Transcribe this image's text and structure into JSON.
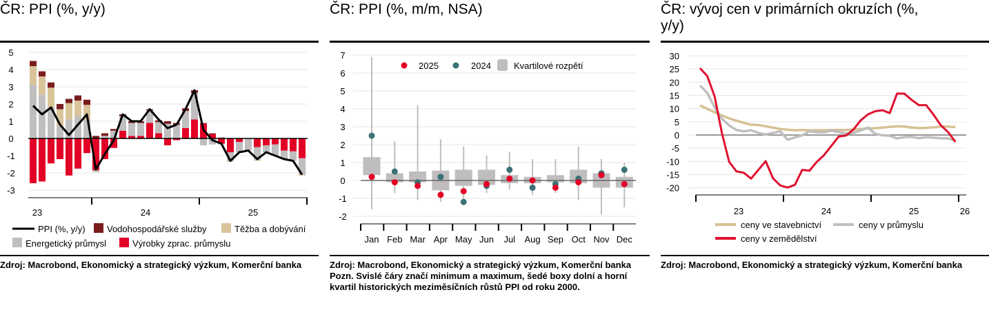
{
  "colors": {
    "manufacturing": "#e30026",
    "energy": "#c0bebe",
    "mining": "#d9c49a",
    "water": "#7b1c1f",
    "ppi_line": "#000000",
    "dot2025": "#e30026",
    "dot2024": "#3a7276",
    "box": "#bfbdbd",
    "agri": "#e0102e",
    "constr": "#d6c194",
    "industry": "#c0bebe"
  },
  "chart_data": [
    {
      "type": "bar",
      "stacked": true,
      "title": "ČR: PPI (%, y/y)",
      "source": "Zdroj: Macrobond, Ekonomický a strategický výzkum, Komerční banka",
      "ylim": [
        -3,
        5
      ],
      "yticks": [
        "5",
        "4",
        "3",
        "2",
        "1",
        "0",
        "-1",
        "-2",
        "-3"
      ],
      "xticks": [
        "23",
        "24",
        "25"
      ],
      "grid": true,
      "legend_position": "bottom",
      "categories": [
        "2023-06",
        "2023-07",
        "2023-08",
        "2023-09",
        "2023-10",
        "2023-11",
        "2023-12",
        "2024-01",
        "2024-02",
        "2024-03",
        "2024-04",
        "2024-05",
        "2024-06",
        "2024-07",
        "2024-08",
        "2024-09",
        "2024-10",
        "2024-11",
        "2024-12",
        "2025-01",
        "2025-02",
        "2025-03",
        "2025-04",
        "2025-05",
        "2025-06",
        "2025-07",
        "2025-08",
        "2025-09",
        "2025-10",
        "2025-11",
        "2025-12"
      ],
      "series": [
        {
          "name": "Výrobky zprac. průmyslu",
          "kind": "bar",
          "values": [
            -2.6,
            -2.5,
            -1.45,
            -1.2,
            -2.15,
            -1.75,
            -0.85,
            -1.85,
            -1.2,
            -0.55,
            0.45,
            0.15,
            0.15,
            0.9,
            0.3,
            -0.4,
            -0.1,
            0.6,
            1.1,
            0.85,
            0.25,
            -0.3,
            -0.8,
            -0.2,
            0,
            -0.5,
            -0.4,
            -0.35,
            -0.7,
            -0.75,
            -1.15
          ]
        },
        {
          "name": "Energetický průmysl",
          "kind": "bar",
          "values": [
            3.1,
            2.55,
            1.8,
            0.7,
            1.1,
            1.3,
            1.1,
            -0.1,
            0.15,
            0.45,
            0.85,
            0.75,
            0.75,
            0.75,
            0.65,
            0.85,
            0.8,
            1.0,
            1.55,
            -0.4,
            -0.35,
            -0.05,
            -0.5,
            -0.6,
            -0.7,
            -0.75,
            -0.4,
            -0.65,
            -0.5,
            -0.55,
            -0.95
          ]
        },
        {
          "name": "Těžba a dobývání",
          "kind": "bar",
          "values": [
            1.1,
            1.05,
            1.15,
            1.0,
            0.95,
            0.9,
            0.85,
            0,
            0,
            0,
            0,
            0,
            0,
            0,
            0,
            0,
            0,
            0,
            0,
            0,
            0,
            0,
            -0.05,
            0,
            0,
            -0.05,
            0,
            0,
            0,
            0,
            -0.05
          ]
        },
        {
          "name": "Vodohospodářské služby",
          "kind": "bar",
          "values": [
            0.3,
            0.3,
            0.3,
            0.3,
            0.25,
            0.3,
            0.3,
            0.15,
            0.15,
            0.1,
            0.1,
            0.1,
            0.1,
            0.05,
            0.1,
            0.15,
            0.1,
            0.15,
            0.15,
            0.05,
            0.05,
            0.05,
            0,
            0,
            0,
            0,
            0,
            0,
            0,
            0,
            0
          ]
        },
        {
          "name": "PPI (%, y/y)",
          "kind": "line",
          "values": [
            1.9,
            1.4,
            1.8,
            0.8,
            0.2,
            0.8,
            1.4,
            -1.8,
            -0.9,
            -0.1,
            1.4,
            1.0,
            1.0,
            1.7,
            1.1,
            0.6,
            0.8,
            1.7,
            2.8,
            0.5,
            -0.1,
            -0.3,
            -1.3,
            -0.8,
            -0.7,
            -1.2,
            -0.8,
            -1.0,
            -1.2,
            -1.3,
            -2.1
          ]
        }
      ]
    },
    {
      "type": "box",
      "title": "ČR: PPI (%, m/m, NSA)",
      "source": "Zdroj: Macrobond, Ekonomický a strategický výzkum, Komerční banka",
      "note": "Pozn. Svislé čáry značí minimum a maximum, šedé boxy dolní a horní kvartil historických meziměsíčních růstů PPI od roku 2000.",
      "ylim": [
        -2,
        7
      ],
      "yticks": [
        "7",
        "6",
        "5",
        "4",
        "3",
        "2",
        "1",
        "0",
        "-1",
        "-2"
      ],
      "grid": true,
      "legend_position": "top",
      "legend": {
        "s2025": "2025",
        "s2024": "2024",
        "box": "Kvartilové rozpětí"
      },
      "categories": [
        "Jan",
        "Feb",
        "Mar",
        "Apr",
        "May",
        "Jun",
        "Jul",
        "Aug",
        "Sep",
        "Oct",
        "Nov",
        "Dec"
      ],
      "min": [
        -1.6,
        -0.7,
        -1.1,
        -1.2,
        -1.2,
        -0.7,
        -0.5,
        -0.8,
        -0.7,
        -1.1,
        -1.9,
        -1.5
      ],
      "max": [
        6.9,
        2.2,
        4.2,
        2.3,
        1.9,
        1.4,
        1.6,
        1.2,
        1.2,
        1.9,
        1.2,
        1.0
      ],
      "q1": [
        0.3,
        -0.1,
        -0.1,
        -0.55,
        -0.3,
        -0.25,
        -0.15,
        -0.15,
        -0.1,
        -0.15,
        -0.4,
        -0.4
      ],
      "q3": [
        1.3,
        0.4,
        0.5,
        0.55,
        0.6,
        0.6,
        0.3,
        0.2,
        0.3,
        0.6,
        0.4,
        0.2
      ],
      "series": [
        {
          "name": "2025",
          "values": [
            0.2,
            -0.1,
            -0.3,
            -0.8,
            -0.6,
            -0.2,
            0.1,
            0.0,
            -0.4,
            -0.1,
            0.3,
            -0.2
          ]
        },
        {
          "name": "2024",
          "values": [
            2.5,
            0.5,
            -0.1,
            0.2,
            -1.2,
            -0.3,
            0.6,
            -0.4,
            -0.2,
            0.1,
            0.4,
            0.6
          ]
        }
      ]
    },
    {
      "type": "line",
      "title_lines": [
        "ČR: vývoj cen v primárních okruzích (%,",
        "y/y)"
      ],
      "source": "Zdroj: Macrobond, Ekonomický a strategický výzkum, Komerční banka",
      "ylim": [
        -20,
        30
      ],
      "yticks": [
        "30",
        "25",
        "20",
        "15",
        "10",
        "5",
        "0",
        "-5",
        "-10",
        "-15",
        "-20"
      ],
      "xticks": [
        "23",
        "24",
        "25",
        "26"
      ],
      "grid": true,
      "legend_position": "bottom",
      "x_start": "2023-01",
      "x_end": "2025-12",
      "series": [
        {
          "name": "ceny ve stavebnictví",
          "values": [
            11.2,
            9.9,
            8.6,
            7.4,
            6.3,
            5.4,
            4.6,
            3.9,
            3.8,
            3.3,
            2.8,
            2.3,
            2.0,
            1.8,
            1.9,
            1.8,
            1.8,
            1.8,
            1.9,
            1.9,
            1.9,
            2.1,
            2.3,
            2.5,
            2.6,
            2.8,
            3.1,
            3.3,
            3.2,
            2.8,
            2.6,
            2.7,
            2.9,
            3.2,
            3.2,
            3.0
          ]
        },
        {
          "name": "ceny v průmyslu",
          "values": [
            18.8,
            15.9,
            10.5,
            6.2,
            3.6,
            1.9,
            1.4,
            1.8,
            0.8,
            0.2,
            0.8,
            1.4,
            -1.8,
            -0.9,
            -0.1,
            1.4,
            1.0,
            1.0,
            1.7,
            1.1,
            0.6,
            0.8,
            1.7,
            2.8,
            0.5,
            -0.1,
            -0.3,
            -1.3,
            -0.8,
            -0.7,
            -1.2,
            -0.8,
            -1.0,
            -1.2,
            -1.3,
            -2.1
          ]
        },
        {
          "name": "ceny v zemědělství",
          "values": [
            25.3,
            22.3,
            14.6,
            0.7,
            -10.2,
            -13.8,
            -14.3,
            -16.5,
            -13.2,
            -9.9,
            -16.4,
            -19.1,
            -19.9,
            -18.9,
            -13.2,
            -13.5,
            -10.2,
            -7.6,
            -4.1,
            -0.6,
            -0.2,
            2.0,
            5.5,
            7.8,
            9.0,
            9.4,
            8.3,
            15.7,
            15.7,
            13.3,
            11.3,
            11.3,
            7.7,
            3.7,
            1.1,
            -2.6
          ]
        }
      ]
    }
  ]
}
